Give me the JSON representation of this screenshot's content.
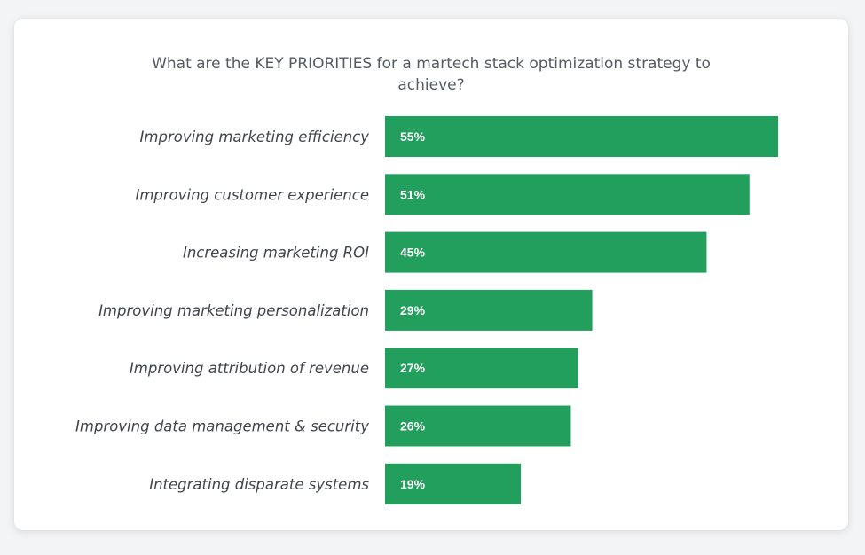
{
  "chart_data": {
    "type": "bar",
    "orientation": "horizontal",
    "title": "What are the KEY PRIORITIES for a martech stack optimization strategy to achieve?",
    "categories": [
      "Improving marketing efficiency",
      "Improving customer experience",
      "Increasing marketing ROI",
      "Improving marketing personalization",
      "Improving attribution of revenue",
      "Improving data management & security",
      "Integrating disparate systems"
    ],
    "values": [
      55,
      51,
      45,
      29,
      27,
      26,
      19
    ],
    "value_labels": [
      "55%",
      "51%",
      "45%",
      "29%",
      "27%",
      "26%",
      "19%"
    ],
    "unit": "%",
    "xlim": [
      0,
      55
    ],
    "grid": false,
    "legend": "none",
    "bar_color": "#239f5d",
    "background": "#ffffff"
  }
}
